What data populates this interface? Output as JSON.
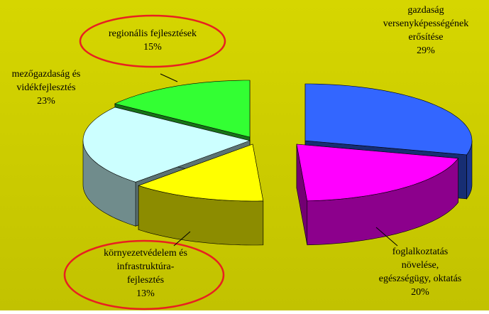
{
  "chart_data": {
    "type": "pie3d",
    "categories": [
      "gazdaság\nversenyképességének\nerősítése",
      "foglalkoztatás\nnövelése,\negészségügy, oktatás",
      "környezetvédelem és\ninfrastruktúra-\nfejlesztés",
      "mezőgazdaság és\nvidékfejlesztés",
      "regionális fejlesztések"
    ],
    "values": [
      29,
      20,
      13,
      23,
      15
    ],
    "value_labels": [
      "29%",
      "20%",
      "13%",
      "23%",
      "15%"
    ],
    "colors": [
      "#3366ff",
      "#ff00ff",
      "#ffff00",
      "#ccffff",
      "#33ff33"
    ]
  }
}
